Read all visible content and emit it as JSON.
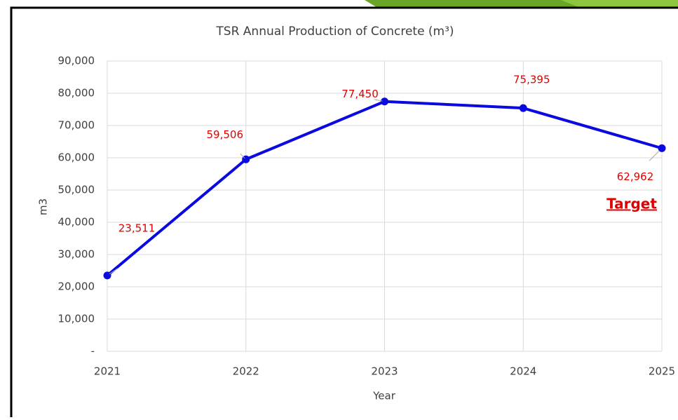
{
  "chart_data": {
    "type": "line",
    "title": "TSR  Annual Production of Concrete (m³)",
    "x_label": "Year",
    "y_label": "m3",
    "x": [
      2021,
      2022,
      2023,
      2024,
      2025
    ],
    "values": [
      23511,
      59506,
      77450,
      75395,
      62962
    ],
    "value_labels": [
      "23,511",
      "59,506",
      "77,450",
      "75,395",
      "62,962"
    ],
    "color": "#0a0ae0",
    "label_color": "#e00000",
    "xlim": [
      2021,
      2025
    ],
    "xticks": [
      2021,
      2022,
      2023,
      2024,
      2025
    ],
    "ylim": [
      0,
      90000
    ],
    "yticks": [
      {
        "value": 0,
        "label": "-"
      },
      {
        "value": 10000,
        "label": "10,000"
      },
      {
        "value": 20000,
        "label": "20,000"
      },
      {
        "value": 30000,
        "label": "30,000"
      },
      {
        "value": 40000,
        "label": "40,000"
      },
      {
        "value": 50000,
        "label": "50,000"
      },
      {
        "value": 60000,
        "label": "60,000"
      },
      {
        "value": 70000,
        "label": "70,000"
      },
      {
        "value": 80000,
        "label": "80,000"
      },
      {
        "value": 90000,
        "label": "90,000"
      }
    ],
    "grid": true,
    "annotation": "Target"
  }
}
